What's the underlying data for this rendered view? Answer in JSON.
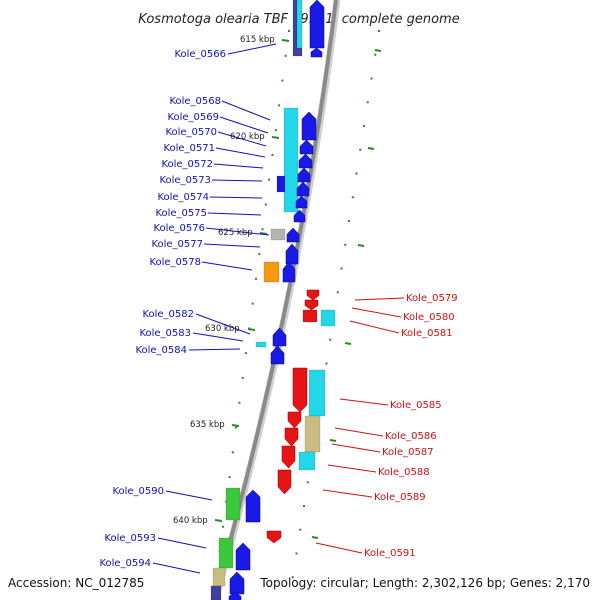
{
  "title": "Kosmotoga olearia TBF 19.5.1, complete genome",
  "footer": {
    "accession": "Accession: NC_012785",
    "summary": "Topology: circular; Length: 2,302,126 bp; Genes: 2,170"
  },
  "colors": {
    "backbone": "#8a8a8a",
    "forward_cds": "#1a1ae6",
    "reverse_cds": "#e61414",
    "cyan": "#22d8e8",
    "gray": "#b4b4b4",
    "orange": "#f59a10",
    "green": "#3cc83c",
    "khaki": "#c8be82",
    "navy": "#4040a0",
    "tick": "#2a8a2a",
    "left_label": "#1010c0",
    "right_label": "#d01010"
  },
  "kbp_marks": [
    "615 kbp",
    "620 kbp",
    "625 kbp",
    "630 kbp",
    "635 kbp",
    "640 kbp"
  ],
  "left_labels": [
    "Kole_0566",
    "Kole_0568",
    "Kole_0569",
    "Kole_0570",
    "Kole_0571",
    "Kole_0572",
    "Kole_0573",
    "Kole_0574",
    "Kole_0575",
    "Kole_0576",
    "Kole_0577",
    "Kole_0578",
    "Kole_0582",
    "Kole_0583",
    "Kole_0584",
    "Kole_0590",
    "Kole_0593",
    "Kole_0594"
  ],
  "right_labels": [
    "Kole_0579",
    "Kole_0580",
    "Kole_0581",
    "Kole_0585",
    "Kole_0586",
    "Kole_0587",
    "Kole_0588",
    "Kole_0589",
    "Kole_0591"
  ]
}
